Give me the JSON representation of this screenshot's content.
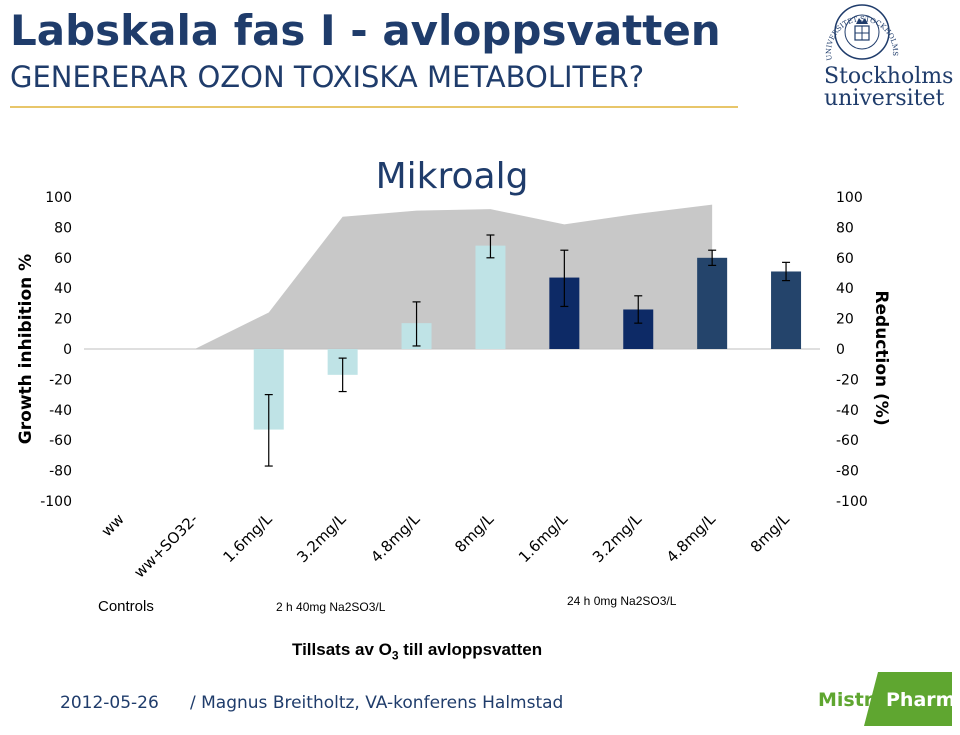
{
  "slide": {
    "title": "Labskala fas I - avloppsvatten",
    "subtitle": "GENERERAR OZON TOXISKA METABOLITER?",
    "footer_date": "2012-05-26",
    "footer_author": "/ Magnus Breitholtz, VA-konferens Halmstad",
    "university_name_line1": "Stockholms",
    "university_name_line2": "universitet",
    "university_seal_text": "UNIVERSITET STOCKHOLMS",
    "partner_logo_part1": "Mistra",
    "partner_logo_part2": "Pharma"
  },
  "chart_data": {
    "type": "bar",
    "title": "Mikroalg",
    "ylabel_left": "Growth inhibition %",
    "ylabel_right": "Reduction (%)",
    "ylim": [
      -100,
      100
    ],
    "yticks": [
      "100",
      "80",
      "60",
      "40",
      "20",
      "0",
      "-20",
      "-40",
      "-60",
      "-80",
      "-100"
    ],
    "categories": [
      "ww",
      "ww+SO32-",
      "1.6mg/L",
      "3.2mg/L",
      "4.8mg/L",
      "8mg/L",
      "1.6mg/L",
      "3.2mg/L",
      "4.8mg/L",
      "8mg/L"
    ],
    "group_labels": [
      "Controls",
      "2 h 40mg Na2SO3/L",
      "24 h 0mg Na2SO3/L"
    ],
    "xaxis_caption_pre": "Tillsats av O",
    "xaxis_caption_sub": "3",
    "xaxis_caption_post": " till avloppsvatten",
    "bars": {
      "values": [
        0,
        0,
        -53,
        -17,
        17,
        68,
        47,
        26,
        60,
        51
      ],
      "error_low": [
        0,
        0,
        -77,
        -28,
        2,
        60,
        28,
        17,
        55,
        45
      ],
      "error_high": [
        0,
        0,
        -30,
        -6,
        31,
        75,
        65,
        35,
        65,
        57
      ],
      "colors": [
        "#bfe3e6",
        "#bfe3e6",
        "#bfe3e6",
        "#bfe3e6",
        "#bfe3e6",
        "#bfe3e6",
        "#0d2a66",
        "#0d2a66",
        "#24446b",
        "#24446b"
      ]
    },
    "reduction_area": {
      "values": [
        null,
        0,
        24,
        87,
        91,
        92,
        82,
        89,
        95,
        null
      ],
      "color": "#c8c8c8"
    },
    "grid": false,
    "legend": "none"
  }
}
